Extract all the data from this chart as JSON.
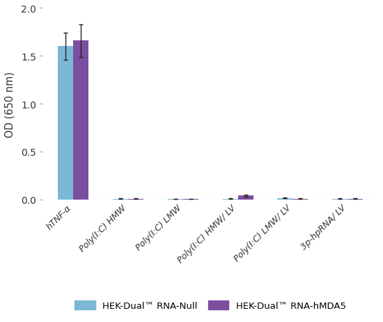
{
  "categories": [
    "hTNF-α",
    "Poly(I:C) HMW",
    "Poly(I:C) LMW",
    "Poly(I:C) HMW/ LV",
    "Poly(I:C) LMW/ LV",
    "3p-hpRNA/ LV"
  ],
  "null_values": [
    1.6,
    0.008,
    0.004,
    0.008,
    0.015,
    0.007
  ],
  "hmda5_values": [
    1.66,
    0.008,
    0.004,
    0.038,
    0.008,
    0.008
  ],
  "null_errors": [
    0.14,
    0.003,
    0.002,
    0.003,
    0.005,
    0.003
  ],
  "hmda5_errors": [
    0.17,
    0.003,
    0.002,
    0.008,
    0.003,
    0.003
  ],
  "null_color": "#7BB8D4",
  "hmda5_color": "#7B4FA0",
  "ylabel": "OD (650 nm)",
  "ylim": [
    0.0,
    2.0
  ],
  "yticks": [
    0.0,
    0.5,
    1.0,
    1.5,
    2.0
  ],
  "bar_width": 0.28,
  "legend_null": "HEK-Dual™ RNA-Null",
  "legend_hmda5": "HEK-Dual™ RNA-hMDA5",
  "background_color": "#ffffff",
  "spine_color": "#999999"
}
